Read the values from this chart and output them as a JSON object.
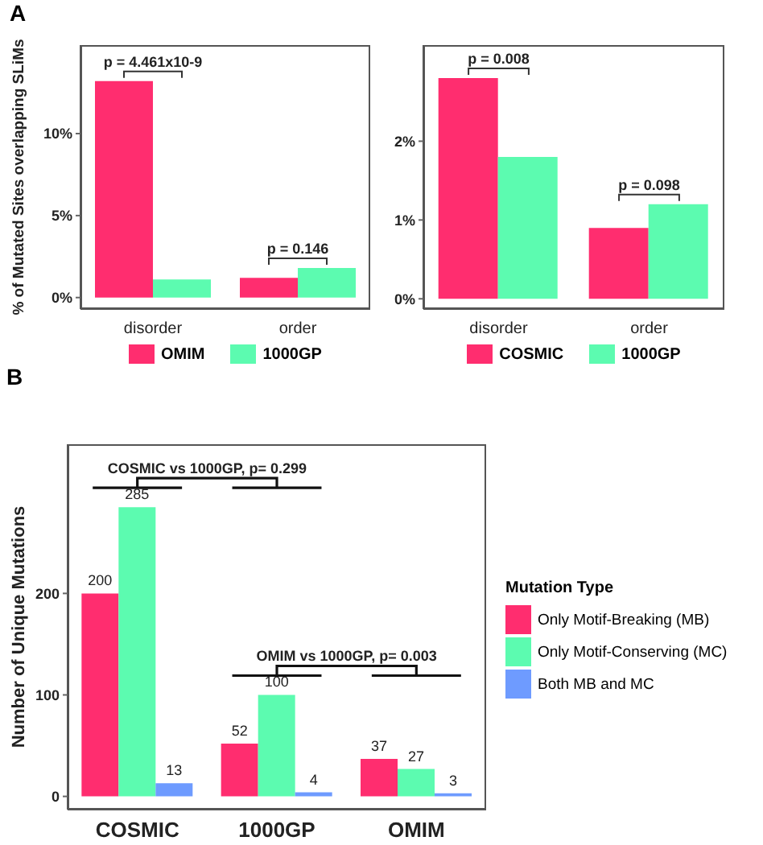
{
  "chart_data": [
    {
      "type": "bar",
      "title": "A",
      "categories": [
        "disorder",
        "order"
      ],
      "ylabel": "% of Mutated Sites overlapping SLiMs",
      "series": [
        {
          "name": "OMIM",
          "color": "#ff2d6f",
          "values": [
            13.2,
            1.2
          ]
        },
        {
          "name": "1000GP",
          "color": "#5cfbb0",
          "values": [
            1.1,
            1.8
          ]
        }
      ],
      "ylim": [
        -0.7,
        15.4
      ],
      "yticks": [
        {
          "value": 0,
          "label": "0%"
        },
        {
          "value": 5,
          "label": "5%"
        },
        {
          "value": 10,
          "label": "10%"
        }
      ],
      "annotations": [
        "p = 4.461x10-9",
        "p = 0.146"
      ],
      "legend": "bottom",
      "grid": false
    },
    {
      "type": "bar",
      "categories": [
        "disorder",
        "order"
      ],
      "series": [
        {
          "name": "COSMIC",
          "color": "#ff2d6f",
          "values": [
            2.8,
            0.9
          ]
        },
        {
          "name": "1000GP",
          "color": "#5cfbb0",
          "values": [
            1.8,
            1.2
          ]
        }
      ],
      "ylim": [
        -0.13,
        3.22
      ],
      "yticks": [
        {
          "value": 0,
          "label": "0%"
        },
        {
          "value": 1,
          "label": "1%"
        },
        {
          "value": 2,
          "label": "2%"
        }
      ],
      "annotations": [
        "p = 0.008",
        "p = 0.098"
      ],
      "legend": "bottom",
      "grid": false
    },
    {
      "type": "bar",
      "title": "B",
      "categories": [
        "COSMIC",
        "1000GP",
        "OMIM"
      ],
      "ylabel": "Number of Unique Mutations",
      "legend_title": "Mutation Type",
      "series": [
        {
          "name": "Only Motif-Breaking (MB)",
          "color": "#ff2d6f",
          "values": [
            200,
            52,
            37
          ]
        },
        {
          "name": "Only Motif-Conserving (MC)",
          "color": "#5cfbb0",
          "values": [
            285,
            100,
            27
          ]
        },
        {
          "name": "Both MB and MC",
          "color": "#6e9bff",
          "values": [
            13,
            4,
            3
          ]
        }
      ],
      "ylim": [
        -13,
        347
      ],
      "yticks": [
        0,
        100,
        200
      ],
      "data_labels": true,
      "annotations": [
        "COSMIC vs 1000GP, p= 0.299",
        "OMIM vs 1000GP, p= 0.003"
      ],
      "legend": "right",
      "grid": false
    }
  ]
}
